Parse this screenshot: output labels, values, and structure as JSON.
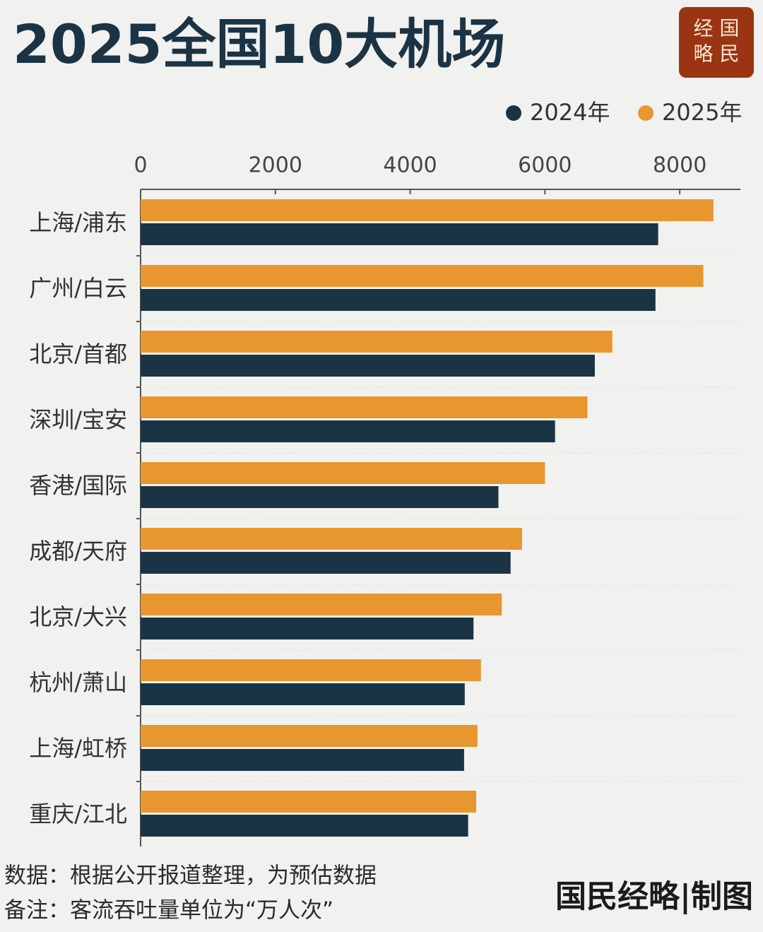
{
  "chart_data": {
    "type": "hbar",
    "title": "2025全国10大机场",
    "logo": [
      "经 国",
      "略 民"
    ],
    "categories": [
      "上海/浦东",
      "广州/白云",
      "北京/首都",
      "深圳/宝安",
      "香港/国际",
      "成都/天府",
      "北京/大兴",
      "杭州/萧山",
      "上海/虹桥",
      "重庆/江北"
    ],
    "series": [
      {
        "name": "2024年",
        "color": "#1b3445",
        "values": [
          7680,
          7640,
          6740,
          6150,
          5310,
          5490,
          4940,
          4810,
          4800,
          4860
        ]
      },
      {
        "name": "2025年",
        "color": "#e8962f",
        "values": [
          8500,
          8350,
          7000,
          6630,
          6000,
          5660,
          5360,
          5050,
          5000,
          4980
        ]
      }
    ],
    "xlim": [
      0,
      8900
    ],
    "xticks": [
      0,
      2000,
      4000,
      6000,
      8000
    ],
    "legend": "top-right",
    "source": "数据：根据公开报道整理，为预估数据",
    "note": "备注：客流吞吐量单位为“万人次”",
    "credit": "国民经略|制图"
  }
}
